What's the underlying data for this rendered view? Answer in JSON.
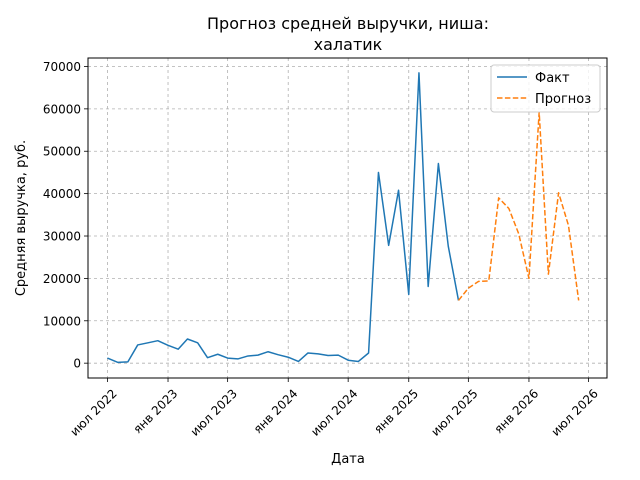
{
  "chart_data": {
    "type": "line",
    "title_lines": [
      "Прогноз средней выручки, ниша:",
      "халатик"
    ],
    "xlabel": "Дата",
    "ylabel": "Средняя выручка, руб.",
    "x_ticks": [
      {
        "date": "2022-07-01",
        "label": "июл 2022"
      },
      {
        "date": "2023-01-01",
        "label": "янв 2023"
      },
      {
        "date": "2023-07-01",
        "label": "июл 2023"
      },
      {
        "date": "2024-01-01",
        "label": "янв 2024"
      },
      {
        "date": "2024-07-01",
        "label": "июл 2024"
      },
      {
        "date": "2025-01-01",
        "label": "янв 2025"
      },
      {
        "date": "2025-07-01",
        "label": "июл 2025"
      },
      {
        "date": "2026-01-01",
        "label": "янв 2026"
      },
      {
        "date": "2026-07-01",
        "label": "июл 2026"
      }
    ],
    "y_ticks": [
      0,
      10000,
      20000,
      30000,
      40000,
      50000,
      60000,
      70000
    ],
    "xlim": [
      "2022-05-03",
      "2026-08-26"
    ],
    "ylim": [
      -3500,
      72000
    ],
    "grid": true,
    "legend_position": "top-right",
    "series": [
      {
        "name": "Факт",
        "color": "#1f77b4",
        "style": "solid",
        "points": [
          [
            "2022-07-01",
            1200
          ],
          [
            "2022-08-01",
            200
          ],
          [
            "2022-09-01",
            300
          ],
          [
            "2022-10-01",
            4300
          ],
          [
            "2022-11-01",
            4800
          ],
          [
            "2022-12-01",
            5300
          ],
          [
            "2023-01-01",
            4200
          ],
          [
            "2023-02-01",
            3300
          ],
          [
            "2023-03-01",
            5700
          ],
          [
            "2023-04-01",
            4800
          ],
          [
            "2023-05-01",
            1300
          ],
          [
            "2023-06-01",
            2100
          ],
          [
            "2023-07-01",
            1200
          ],
          [
            "2023-08-01",
            1000
          ],
          [
            "2023-09-01",
            1700
          ],
          [
            "2023-10-01",
            1900
          ],
          [
            "2023-11-01",
            2700
          ],
          [
            "2023-12-01",
            2000
          ],
          [
            "2024-01-01",
            1400
          ],
          [
            "2024-02-01",
            400
          ],
          [
            "2024-03-01",
            2400
          ],
          [
            "2024-04-01",
            2200
          ],
          [
            "2024-05-01",
            1800
          ],
          [
            "2024-06-01",
            1900
          ],
          [
            "2024-07-01",
            700
          ],
          [
            "2024-08-01",
            400
          ],
          [
            "2024-09-01",
            2400
          ],
          [
            "2024-10-01",
            45000
          ],
          [
            "2024-11-01",
            27800
          ],
          [
            "2024-12-01",
            40800
          ],
          [
            "2025-01-01",
            16200
          ],
          [
            "2025-02-01",
            68500
          ],
          [
            "2025-03-01",
            18100
          ],
          [
            "2025-04-01",
            47100
          ],
          [
            "2025-05-01",
            27600
          ],
          [
            "2025-06-01",
            14800
          ]
        ]
      },
      {
        "name": "Прогноз",
        "color": "#ff7f0e",
        "style": "dashed",
        "points": [
          [
            "2025-06-01",
            14800
          ],
          [
            "2025-07-01",
            17700
          ],
          [
            "2025-08-01",
            19300
          ],
          [
            "2025-09-01",
            19400
          ],
          [
            "2025-10-01",
            39000
          ],
          [
            "2025-11-01",
            36500
          ],
          [
            "2025-12-01",
            30500
          ],
          [
            "2026-01-01",
            20000
          ],
          [
            "2026-02-01",
            59200
          ],
          [
            "2026-03-01",
            21000
          ],
          [
            "2026-04-01",
            40200
          ],
          [
            "2026-05-01",
            32500
          ],
          [
            "2026-06-01",
            14800
          ]
        ]
      }
    ]
  }
}
